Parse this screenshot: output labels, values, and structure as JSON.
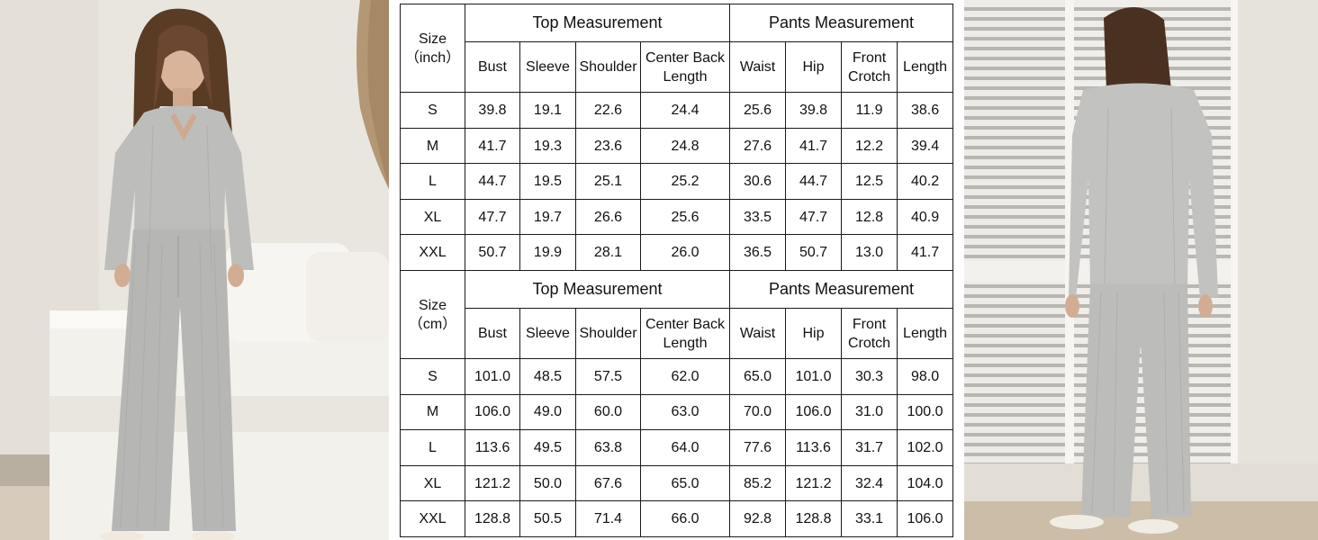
{
  "size_chart": {
    "top_group_label": "Top Measurement",
    "pants_group_label": "Pants Measurement",
    "columns": [
      "Bust",
      "Sleeve",
      "Shoulder",
      "Center Back Length",
      "Waist",
      "Hip",
      "Front Crotch",
      "Length"
    ],
    "inch": {
      "size_label": "Size",
      "unit_label": "（inch）",
      "rows": [
        {
          "size": "S",
          "values": [
            "39.8",
            "19.1",
            "22.6",
            "24.4",
            "25.6",
            "39.8",
            "11.9",
            "38.6"
          ]
        },
        {
          "size": "M",
          "values": [
            "41.7",
            "19.3",
            "23.6",
            "24.8",
            "27.6",
            "41.7",
            "12.2",
            "39.4"
          ]
        },
        {
          "size": "L",
          "values": [
            "44.7",
            "19.5",
            "25.1",
            "25.2",
            "30.6",
            "44.7",
            "12.5",
            "40.2"
          ]
        },
        {
          "size": "XL",
          "values": [
            "47.7",
            "19.7",
            "26.6",
            "25.6",
            "33.5",
            "47.7",
            "12.8",
            "40.9"
          ]
        },
        {
          "size": "XXL",
          "values": [
            "50.7",
            "19.9",
            "28.1",
            "26.0",
            "36.5",
            "50.7",
            "13.0",
            "41.7"
          ]
        }
      ]
    },
    "cm": {
      "size_label": "Size",
      "unit_label": "（cm）",
      "rows": [
        {
          "size": "S",
          "values": [
            "101.0",
            "48.5",
            "57.5",
            "62.0",
            "65.0",
            "101.0",
            "30.3",
            "98.0"
          ]
        },
        {
          "size": "M",
          "values": [
            "106.0",
            "49.0",
            "60.0",
            "63.0",
            "70.0",
            "106.0",
            "31.0",
            "100.0"
          ]
        },
        {
          "size": "L",
          "values": [
            "113.6",
            "49.5",
            "63.8",
            "64.0",
            "77.6",
            "113.6",
            "31.7",
            "102.0"
          ]
        },
        {
          "size": "XL",
          "values": [
            "121.2",
            "50.0",
            "67.6",
            "65.0",
            "85.2",
            "121.2",
            "32.4",
            "104.0"
          ]
        },
        {
          "size": "XXL",
          "values": [
            "128.8",
            "50.5",
            "71.4",
            "66.0",
            "92.8",
            "128.8",
            "33.1",
            "106.0"
          ]
        }
      ]
    }
  },
  "colors": {
    "wall": "#e9e5df",
    "sofa": "#f4f2ee",
    "outfit_grey": "#b9b9b7",
    "hair_brown": "#5a3b24",
    "shutter_white": "#ecebe8",
    "shutter_shadow": "#8e8a84"
  }
}
